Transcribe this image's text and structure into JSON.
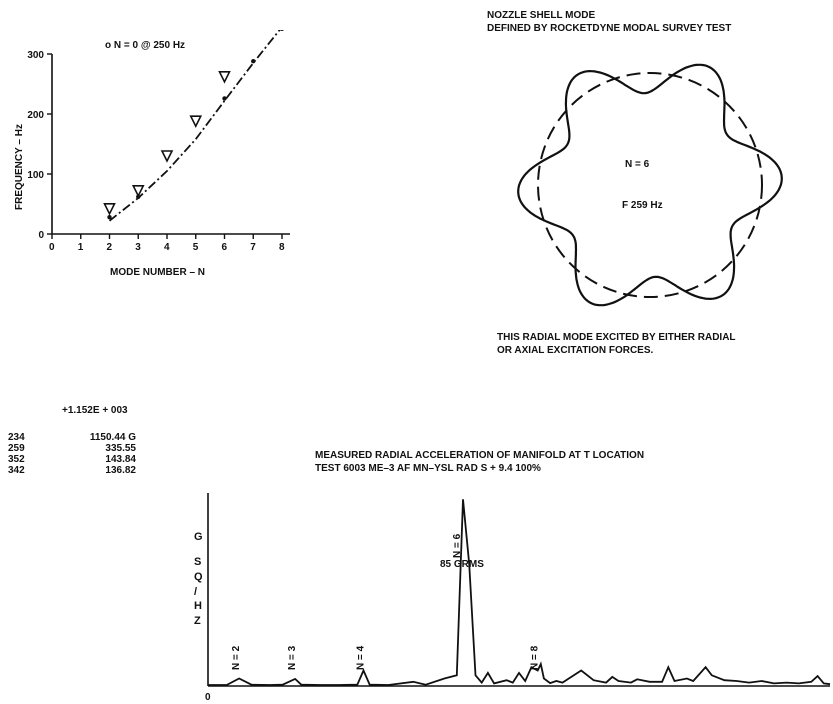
{
  "chart_data": [
    {
      "type": "scatter",
      "title": "",
      "xlabel": "MODE NUMBER – N",
      "ylabel": "FREQUENCY – Hz",
      "xlim": [
        0,
        8
      ],
      "ylim": [
        0,
        300
      ],
      "x_ticks": [
        "0",
        "1",
        "2",
        "3",
        "4",
        "5",
        "6",
        "7",
        "8"
      ],
      "y_ticks": [
        "0",
        "100",
        "200",
        "300"
      ],
      "legend": "o N = 0 @ 250 Hz",
      "grid": false,
      "series": [
        {
          "marker": "triangle",
          "points": [
            [
              2,
              42
            ],
            [
              3,
              72
            ],
            [
              4,
              130
            ],
            [
              5,
              188
            ],
            [
              6,
              262
            ]
          ]
        },
        {
          "marker": "dot",
          "points": [
            [
              2,
              28
            ],
            [
              3,
              62
            ],
            [
              6,
              226
            ],
            [
              7,
              288
            ],
            [
              8,
              342
            ]
          ]
        },
        {
          "line": "dash-dot",
          "points": [
            [
              2,
              22
            ],
            [
              3,
              60
            ],
            [
              4,
              105
            ],
            [
              5,
              158
            ],
            [
              6,
              222
            ],
            [
              7,
              285
            ],
            [
              8,
              345
            ]
          ]
        }
      ]
    },
    {
      "type": "line",
      "title": "MEASURED RADIAL ACCELERATION OF MANIFOLD AT T LOCATION",
      "subtitle": "TEST 6003 ME–3 AF MN–YSL RAD S + 9.4 100%",
      "ylabel": "G SQ / HZ",
      "x_origin_label": "0",
      "grms_label": "85 GRMS",
      "peak_labels": [
        "N = 2",
        "N = 3",
        "N = 4",
        "N = 6",
        "N = 8"
      ],
      "scale_label": "+1.152E + 003",
      "peaks": [
        {
          "freq": "234",
          "amp": "1150.44 G"
        },
        {
          "freq": "259",
          "amp": "335.55"
        },
        {
          "freq": "352",
          "amp": "143.84"
        },
        {
          "freq": "342",
          "amp": "136.82"
        }
      ],
      "ylim": [
        0,
        1152
      ],
      "x_units": "spectrum position 0–100",
      "y": [
        [
          0,
          0
        ],
        [
          3,
          0
        ],
        [
          5,
          40
        ],
        [
          7,
          2
        ],
        [
          10,
          0
        ],
        [
          12,
          2
        ],
        [
          14,
          38
        ],
        [
          15,
          2
        ],
        [
          18,
          0
        ],
        [
          21,
          0
        ],
        [
          24,
          2
        ],
        [
          25,
          90
        ],
        [
          26,
          2
        ],
        [
          29,
          0
        ],
        [
          33,
          20
        ],
        [
          35,
          2
        ],
        [
          38,
          40
        ],
        [
          40,
          60
        ],
        [
          41,
          1150
        ],
        [
          42,
          750
        ],
        [
          43,
          60
        ],
        [
          44,
          15
        ],
        [
          45,
          75
        ],
        [
          46,
          10
        ],
        [
          48,
          30
        ],
        [
          49,
          15
        ],
        [
          50,
          75
        ],
        [
          51,
          25
        ],
        [
          52,
          110
        ],
        [
          53,
          90
        ],
        [
          53.5,
          130
        ],
        [
          54,
          40
        ],
        [
          55,
          12
        ],
        [
          56,
          25
        ],
        [
          57,
          15
        ],
        [
          58,
          40
        ],
        [
          60,
          90
        ],
        [
          62,
          30
        ],
        [
          64,
          15
        ],
        [
          65,
          50
        ],
        [
          66,
          25
        ],
        [
          68,
          15
        ],
        [
          69,
          35
        ],
        [
          71,
          20
        ],
        [
          73,
          20
        ],
        [
          74,
          110
        ],
        [
          75,
          25
        ],
        [
          77,
          40
        ],
        [
          78,
          25
        ],
        [
          80,
          110
        ],
        [
          81,
          60
        ],
        [
          83,
          30
        ],
        [
          85,
          25
        ],
        [
          87,
          15
        ],
        [
          89,
          25
        ],
        [
          91,
          10
        ],
        [
          93,
          15
        ],
        [
          95,
          10
        ],
        [
          97,
          20
        ],
        [
          98,
          55
        ],
        [
          99,
          10
        ],
        [
          100,
          5
        ]
      ]
    }
  ],
  "mode_diagram": {
    "title_line1": "NOZZLE SHELL MODE",
    "title_line2": "DEFINED BY ROCKETDYNE MODAL SURVEY TEST",
    "n_label": "N = 6",
    "f_label": "F   259 Hz",
    "caption_line1": "THIS RADIAL MODE EXCITED BY EITHER RADIAL",
    "caption_line2": "OR AXIAL EXCITATION FORCES.",
    "lobes": 6
  }
}
